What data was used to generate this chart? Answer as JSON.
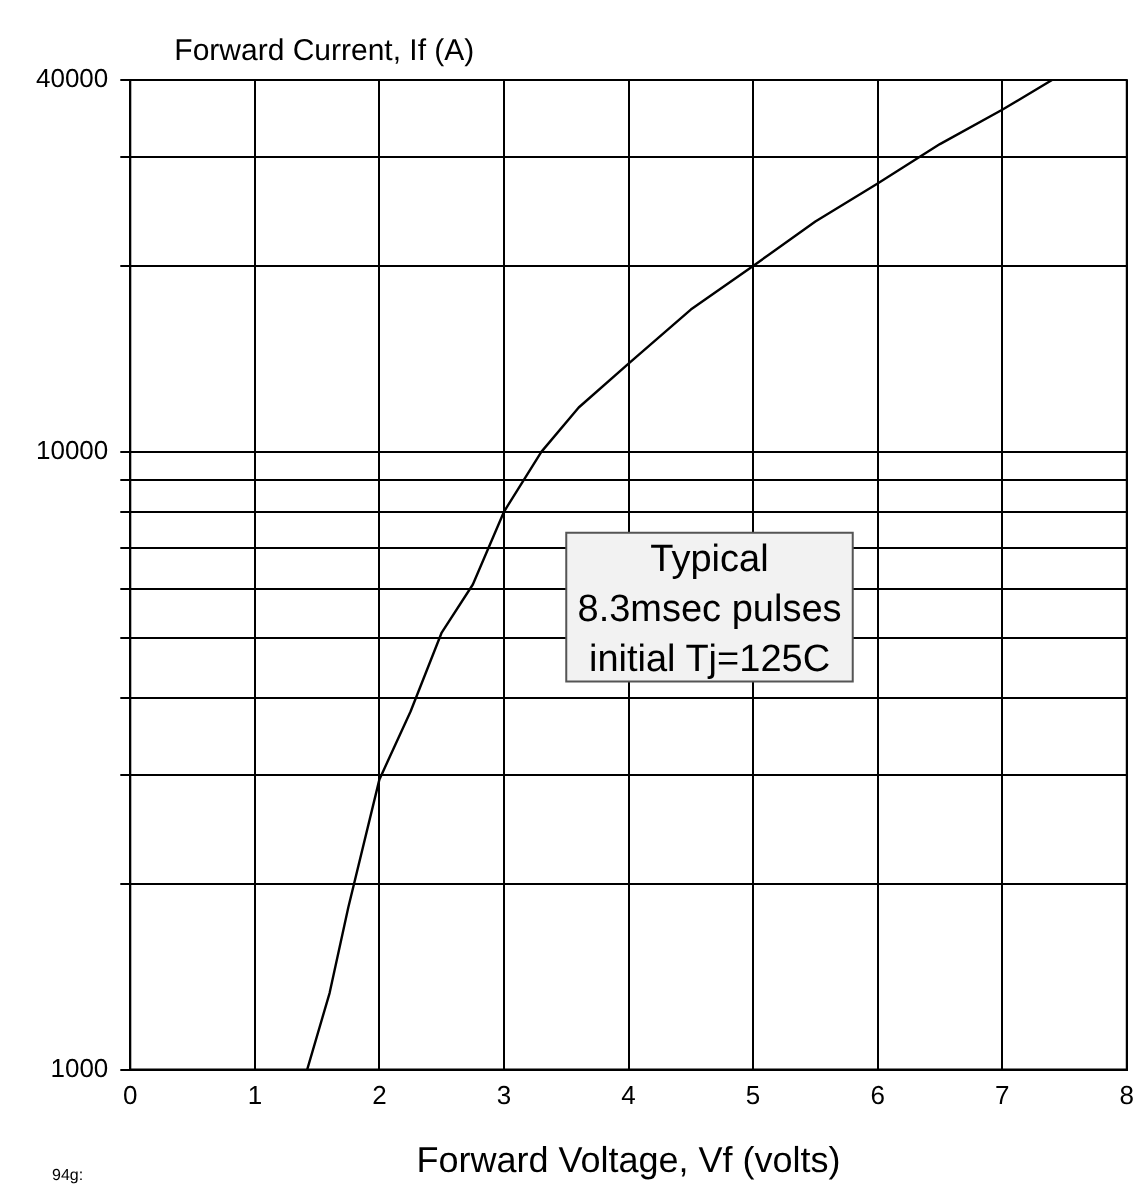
{
  "chart_data": {
    "type": "line",
    "xlabel": "Forward Voltage, Vf (volts)",
    "ylabel": "Forward Current, If (A)",
    "annotations": [
      "Typical\n8.3msec pulses\ninitial Tj=125C",
      "94g:"
    ],
    "series": [
      {
        "color": "#000000",
        "x": [
          1.42,
          1.6,
          1.75,
          2.0,
          2.25,
          2.5,
          2.75,
          3.0,
          3.3,
          3.6,
          4.0,
          4.5,
          5.0,
          5.5,
          6.0,
          6.5,
          7.0,
          7.4
        ],
        "values": [
          1000,
          1330,
          1830,
          2950,
          3800,
          5100,
          6100,
          8000,
          10000,
          11800,
          13900,
          17000,
          20000,
          23600,
          27200,
          31500,
          35800,
          40000
        ]
      }
    ],
    "xlim": [
      0,
      8
    ],
    "xticks": [
      0,
      1,
      2,
      3,
      4,
      5,
      6,
      7,
      8
    ],
    "ylim": [
      1000,
      40000
    ],
    "yticks": [
      1000,
      {
        "value": 2000,
        "label": null
      },
      {
        "value": 3000,
        "label": null
      },
      {
        "value": 4000,
        "label": null
      },
      {
        "value": 5000,
        "label": null
      },
      {
        "value": 6000,
        "label": null
      },
      {
        "value": 7000,
        "label": null
      },
      {
        "value": 8000,
        "label": null
      },
      {
        "value": 9000,
        "label": null
      },
      10000,
      {
        "value": 20000,
        "label": null
      },
      {
        "value": 30000,
        "label": null
      },
      40000
    ],
    "log": "y",
    "grid": true,
    "legend": false,
    "marker": "none",
    "line_style": "solid"
  }
}
